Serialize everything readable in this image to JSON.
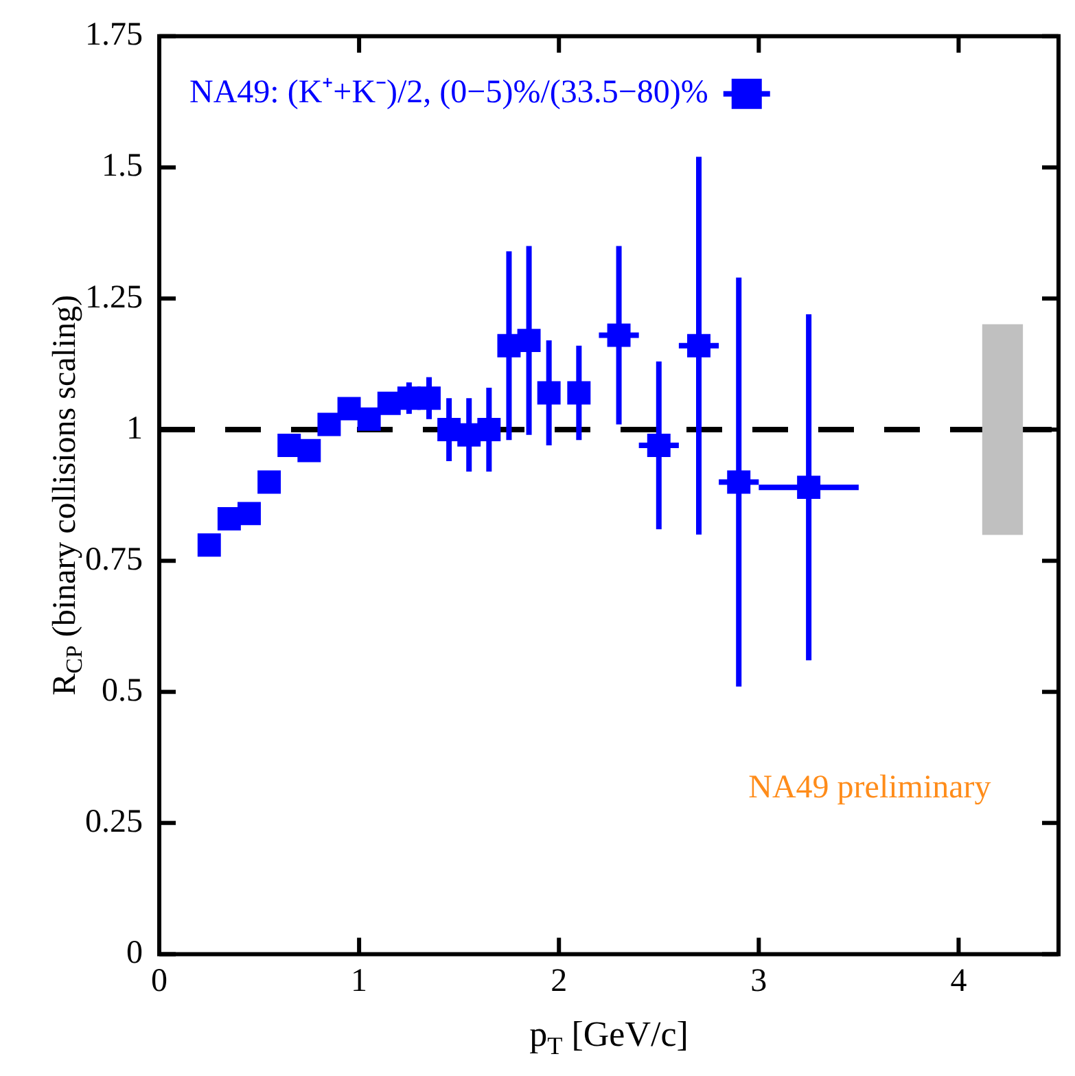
{
  "chart_data": {
    "type": "scatter",
    "xlabel": "p$_{T}$ [GeV/c]",
    "ylabel": "R$_{CP}$ (binary collisions scaling)",
    "xlim": [
      0,
      4.5
    ],
    "xticks": [
      0,
      1,
      2,
      3,
      4
    ],
    "ylim": [
      0,
      1.75
    ],
    "yticks": [
      0,
      0.25,
      0.5,
      0.75,
      1,
      1.25,
      1.5,
      1.75
    ],
    "grid": false,
    "legend": "top left",
    "marker": "square",
    "series": [
      {
        "name": "NA49: (K⁺+K⁻)/2, (0−5)%/(33.5−80)%",
        "color": "#0000ff",
        "x": [
          0.25,
          0.35,
          0.45,
          0.55,
          0.65,
          0.75,
          0.85,
          0.95,
          1.05,
          1.15,
          1.25,
          1.35,
          1.45,
          1.55,
          1.65,
          1.75,
          1.85,
          1.95,
          2.1,
          2.3,
          2.5,
          2.7,
          2.9,
          3.25
        ],
        "values": [
          0.78,
          0.83,
          0.84,
          0.9,
          0.97,
          0.96,
          1.01,
          1.04,
          1.02,
          1.05,
          1.06,
          1.06,
          1.0,
          0.99,
          1.0,
          1.16,
          1.17,
          1.07,
          1.07,
          1.18,
          0.97,
          1.16,
          0.9,
          0.89
        ],
        "errors": [
          null,
          null,
          null,
          null,
          null,
          null,
          null,
          null,
          null,
          null,
          0.03,
          0.04,
          0.06,
          0.07,
          0.08,
          0.18,
          0.18,
          0.1,
          0.09,
          0.17,
          0.16,
          0.36,
          0.39,
          0.33
        ],
        "xerrors": [
          null,
          null,
          null,
          null,
          null,
          null,
          null,
          null,
          null,
          null,
          null,
          null,
          null,
          null,
          null,
          null,
          null,
          null,
          null,
          0.1,
          0.1,
          0.1,
          0.1,
          0.25
        ]
      },
      {
        "type": "bar",
        "color": "#c0c0c0",
        "x": [
          4.22
        ],
        "base": [
          0.8
        ],
        "values": [
          0.4
        ]
      }
    ],
    "ref_lines": [
      {
        "axis": "y",
        "value": 1,
        "color": "#000000",
        "line_style": "dashed"
      }
    ],
    "annotations": [
      "NA49 preliminary"
    ]
  }
}
